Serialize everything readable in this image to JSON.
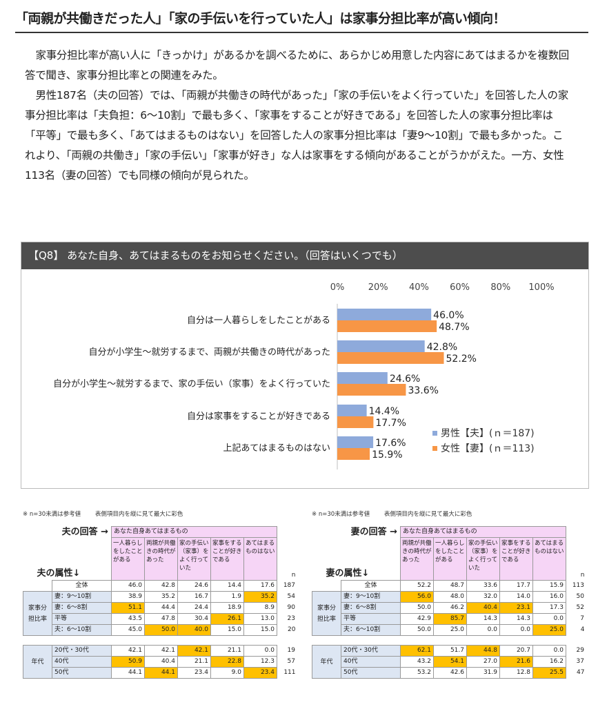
{
  "title": "「両親が共働きだった人」「家の手伝いを行っていた人」は家事分担比率が高い傾向！",
  "paragraphs": [
    "家事分担比率が高い人に「きっかけ」があるかを調べるために、あらかじめ用意した内容にあてはまるかを複数回答で聞き、家事分担比率との関連をみた。",
    "男性187名（夫の回答）では、「両親が共働きの時代があった」「家の手伝いをよく行っていた」を回答した人の家事分担比率は「夫負担：6～10割」で最も多く、「家事をすることが好きである」を回答した人の家事分担比率は「平等」で最も多く、「あてはまるものはない」を回答した人の家事分担比率は「妻9～10割」で最も多かった。これより、「両親の共働き」「家の手伝い」「家事が好き」な人は家事をする傾向があることがうかがえた。一方、女性113名（妻の回答）でも同様の傾向が見られた。"
  ],
  "chart_header": "【Q8】 あなた自身、あてはまるものをお知らせください。（回答はいくつでも）",
  "chart_data": {
    "type": "bar",
    "orientation": "horizontal",
    "categories": [
      "自分は一人暮らしをしたことがある",
      "自分が小学生～就労するまで、両親が共働きの時代があった",
      "自分が小学生～就労するまで、家の手伝い（家事）をよく行っていた",
      "自分は家事をすることが好きである",
      "上記あてはまるものはない"
    ],
    "series": [
      {
        "name": "男性【夫】(ｎ＝187)",
        "values": [
          46.0,
          42.8,
          24.6,
          14.4,
          17.6
        ],
        "labels": [
          "46.0%",
          "42.8%",
          "24.6%",
          "14.4%",
          "17.6%"
        ],
        "color": "#8eaadb"
      },
      {
        "name": "女性【妻】(ｎ＝113)",
        "values": [
          48.7,
          52.2,
          33.6,
          17.7,
          15.9
        ],
        "labels": [
          "48.7%",
          "52.2%",
          "33.6%",
          "17.7%",
          "15.9%"
        ],
        "color": "#f79646"
      }
    ],
    "xticks": [
      "0%",
      "20%",
      "40%",
      "60%",
      "80%",
      "100%"
    ],
    "xlim": [
      0,
      100
    ],
    "legend_position": "right",
    "grid": false
  },
  "tables": [
    {
      "notes": [
        "※ n=30未満は参考値",
        "表側項目内を縦に見て最大に彩色"
      ],
      "respondent": "夫の回答 →",
      "group_title": "あなた自身あてはまるもの",
      "attr_title": "夫の属性↓",
      "n_label": "n",
      "columns": [
        "一人暮らしをしたことがある",
        "両親が共働きの時代があった",
        "家の手伝い（家事）をよく行っていた",
        "家事をすることが好きである",
        "あてはまるものはない"
      ],
      "total": {
        "label": "全体",
        "values": [
          "46.0",
          "42.8",
          "24.6",
          "14.4",
          "17.6"
        ],
        "n": "187"
      },
      "groups": [
        {
          "label": "家事分担比率",
          "rows": [
            {
              "label": "妻：9～10割",
              "values": [
                "38.9",
                "35.2",
                "16.7",
                "1.9",
                "35.2"
              ],
              "hl": [
                4
              ],
              "n": "54"
            },
            {
              "label": "妻：6～8割",
              "values": [
                "51.1",
                "44.4",
                "24.4",
                "18.9",
                "8.9"
              ],
              "hl": [
                0
              ],
              "n": "90"
            },
            {
              "label": "平等",
              "values": [
                "43.5",
                "47.8",
                "30.4",
                "26.1",
                "13.0"
              ],
              "hl": [
                3
              ],
              "n": "23"
            },
            {
              "label": "夫：6～10割",
              "values": [
                "45.0",
                "50.0",
                "40.0",
                "15.0",
                "15.0"
              ],
              "hl": [
                1,
                2
              ],
              "n": "20"
            }
          ]
        },
        {
          "label": "年代",
          "rows": [
            {
              "label": "20代・30代",
              "values": [
                "42.1",
                "42.1",
                "42.1",
                "21.1",
                "0.0"
              ],
              "hl": [
                2
              ],
              "n": "19"
            },
            {
              "label": "40代",
              "values": [
                "50.9",
                "40.4",
                "21.1",
                "22.8",
                "12.3"
              ],
              "hl": [
                0,
                3
              ],
              "n": "57"
            },
            {
              "label": "50代",
              "values": [
                "44.1",
                "44.1",
                "23.4",
                "9.0",
                "23.4"
              ],
              "hl": [
                1,
                4
              ],
              "n": "111"
            }
          ]
        }
      ]
    },
    {
      "notes": [
        "※ n=30未満は参考値",
        "表側項目内を縦に見て最大に彩色"
      ],
      "respondent": "妻の回答 →",
      "group_title": "あなた自身あてはまるもの",
      "attr_title": "妻の属性↓",
      "n_label": "n",
      "columns": [
        "両親が共働きの時代があった",
        "一人暮らしをしたことがある",
        "家の手伝い（家事）をよく行っていた",
        "家事をすることが好きである",
        "あてはまるものはない"
      ],
      "total": {
        "label": "全体",
        "values": [
          "52.2",
          "48.7",
          "33.6",
          "17.7",
          "15.9"
        ],
        "n": "113"
      },
      "groups": [
        {
          "label": "家事分担比率",
          "rows": [
            {
              "label": "妻：9～10割",
              "values": [
                "56.0",
                "48.0",
                "32.0",
                "14.0",
                "16.0"
              ],
              "hl": [
                0
              ],
              "n": "50"
            },
            {
              "label": "妻：6～8割",
              "values": [
                "50.0",
                "46.2",
                "40.4",
                "23.1",
                "17.3"
              ],
              "hl": [
                2,
                3
              ],
              "n": "52"
            },
            {
              "label": "平等",
              "values": [
                "42.9",
                "85.7",
                "14.3",
                "14.3",
                "0.0"
              ],
              "hl": [
                1
              ],
              "n": "7"
            },
            {
              "label": "夫：6～10割",
              "values": [
                "50.0",
                "25.0",
                "0.0",
                "0.0",
                "25.0"
              ],
              "hl": [
                4
              ],
              "n": "4"
            }
          ]
        },
        {
          "label": "年代",
          "rows": [
            {
              "label": "20代・30代",
              "values": [
                "62.1",
                "51.7",
                "44.8",
                "20.7",
                "0.0"
              ],
              "hl": [
                0,
                2
              ],
              "n": "29"
            },
            {
              "label": "40代",
              "values": [
                "43.2",
                "54.1",
                "27.0",
                "21.6",
                "16.2"
              ],
              "hl": [
                1,
                3
              ],
              "n": "37"
            },
            {
              "label": "50代",
              "values": [
                "53.2",
                "42.6",
                "31.9",
                "12.8",
                "25.5"
              ],
              "hl": [
                4
              ],
              "n": "47"
            }
          ]
        }
      ]
    }
  ]
}
